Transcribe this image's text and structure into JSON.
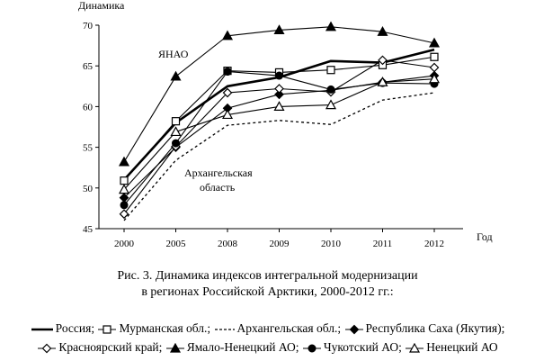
{
  "chart_data": {
    "type": "line",
    "y_axis_title": "Динамика",
    "x_axis_title": "Год",
    "x": [
      "2000",
      "2005",
      "2008",
      "2009",
      "2010",
      "2011",
      "2012"
    ],
    "ylim": [
      45,
      70
    ],
    "yticks": [
      45,
      50,
      55,
      60,
      65,
      70
    ],
    "grid": false,
    "series": [
      {
        "name": "Россия",
        "style": "solid-thick",
        "marker": "none",
        "values": [
          51.0,
          58.0,
          62.5,
          63.6,
          65.6,
          65.4,
          67.0
        ]
      },
      {
        "name": "Мурманская обл.",
        "style": "solid",
        "marker": "square-open",
        "values": [
          50.9,
          58.2,
          64.4,
          64.2,
          64.5,
          65.1,
          66.1
        ]
      },
      {
        "name": "Архангельская обл.",
        "style": "dashed",
        "marker": "none",
        "values": [
          46.0,
          53.4,
          57.7,
          58.3,
          57.8,
          60.8,
          61.7
        ]
      },
      {
        "name": "Республика Саха (Якутия)",
        "style": "solid",
        "marker": "diamond-filled",
        "values": [
          48.8,
          55.0,
          59.8,
          61.5,
          62.0,
          63.0,
          63.8
        ]
      },
      {
        "name": "Красноярский край",
        "style": "solid",
        "marker": "diamond-open",
        "values": [
          46.8,
          55.1,
          61.7,
          62.2,
          61.8,
          65.7,
          64.8
        ]
      },
      {
        "name": "Ямало-Ненецкий АО",
        "style": "solid",
        "marker": "triangle-filled",
        "values": [
          53.2,
          63.7,
          68.7,
          69.4,
          69.8,
          69.2,
          67.8
        ]
      },
      {
        "name": "Чукотский АО",
        "style": "solid",
        "marker": "circle-filled",
        "values": [
          47.9,
          55.5,
          64.3,
          63.8,
          62.1,
          62.9,
          62.8
        ]
      },
      {
        "name": "Ненецкий АО",
        "style": "solid",
        "marker": "triangle-open",
        "values": [
          49.8,
          56.9,
          59.0,
          60.0,
          60.2,
          63.0,
          63.4
        ]
      }
    ],
    "annotations": [
      {
        "text": "ЯНАО"
      },
      {
        "text": "Архангельская"
      },
      {
        "text": "область"
      }
    ]
  },
  "caption": {
    "line1": "Рис. 3. Динамика индексов интегральной модернизации",
    "line2": "в регионах Российской Арктики, 2000-2012 гг.:"
  },
  "legend": {
    "entries": [
      {
        "sample": "thick",
        "label": "Россия;"
      },
      {
        "sample": "square-open",
        "label": "Мурманская обл.;"
      },
      {
        "sample": "dashes",
        "label": "Архангельская обл.;"
      },
      {
        "sample": "diamond-filled",
        "label": "Республика Саха (Якутия);"
      },
      {
        "sample": "diamond-open",
        "label": "Красноярский край;"
      },
      {
        "sample": "triangle-filled",
        "label": "Ямало-Ненецкий АО;"
      },
      {
        "sample": "circle-filled",
        "label": "Чукотский АО;"
      },
      {
        "sample": "triangle-open",
        "label": "Ненецкий АО"
      }
    ]
  }
}
